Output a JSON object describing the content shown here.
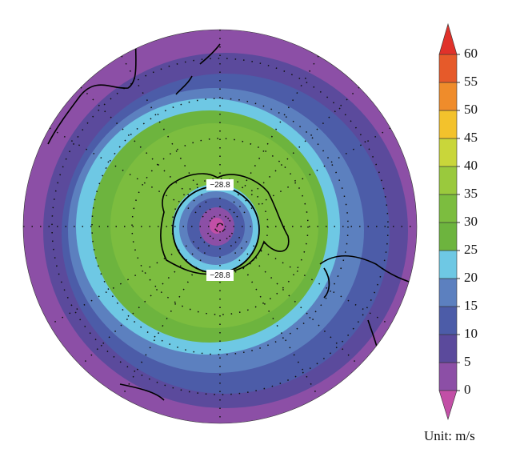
{
  "colorbar": {
    "ticks": [
      0,
      5,
      10,
      15,
      20,
      25,
      30,
      35,
      40,
      45,
      50,
      55,
      60
    ],
    "colors": [
      "#8c4fa6",
      "#5b4a9c",
      "#4c5ca8",
      "#5c80bf",
      "#6ec8e4",
      "#6db43e",
      "#7cbd3f",
      "#9ac93d",
      "#c9d63a",
      "#f3c22c",
      "#ef8c2b",
      "#e65a2a"
    ],
    "under_color": "#c24fa6",
    "over_color": "#e0312a",
    "unit_label": "Unit: m/s"
  },
  "contour_labels": [
    "−28.8",
    "−28.8"
  ]
}
